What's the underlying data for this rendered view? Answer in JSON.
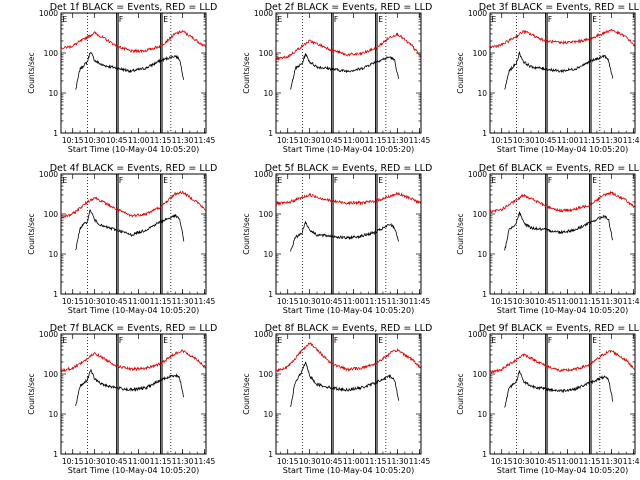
{
  "figure": {
    "ylabel": "Counts/sec",
    "xlabel": "Start Time (10-May-04 10:05:20)",
    "colors": {
      "events": "#000000",
      "lld": "#e00000"
    },
    "y_tick_labels": [
      "1",
      "10",
      "100",
      "1000"
    ],
    "x_tick_labels": [
      "10:15",
      "10:30",
      "10:45",
      "11:00",
      "11:15",
      "11:30",
      "11:45"
    ],
    "marker_labels": [
      "E",
      "F",
      "E"
    ]
  },
  "chart_data": [
    {
      "type": "line",
      "title": "Det 1f BLACK = Events, RED = LLD",
      "ylim": [
        1,
        1000
      ],
      "y_scale": "log",
      "x_range": [
        "10:07",
        "11:46"
      ],
      "series": [
        {
          "name": "Events",
          "color": "#000000",
          "x": [
            "10:17",
            "10:20",
            "10:25",
            "10:27",
            "10:30",
            "10:35",
            "10:45",
            "10:55",
            "11:05",
            "11:15",
            "11:25",
            "11:28",
            "11:31"
          ],
          "y": [
            12,
            40,
            60,
            110,
            65,
            50,
            42,
            35,
            42,
            65,
            85,
            70,
            20
          ]
        },
        {
          "name": "LLD",
          "color": "#e00000",
          "x": [
            "10:07",
            "10:15",
            "10:25",
            "10:30",
            "10:45",
            "10:55",
            "11:05",
            "11:15",
            "11:25",
            "11:30",
            "11:40",
            "11:46"
          ],
          "y": [
            130,
            150,
            250,
            320,
            150,
            110,
            115,
            150,
            300,
            350,
            200,
            140
          ]
        }
      ],
      "vertical_lines": {
        "solid": [
          "10:45",
          "10:46",
          "11:15",
          "11:16"
        ],
        "dotted": [
          "10:25",
          "11:22"
        ]
      }
    },
    {
      "type": "line",
      "title": "Det 2f BLACK = Events, RED = LLD",
      "ylim": [
        1,
        1000
      ],
      "y_scale": "log",
      "x_range": [
        "10:07",
        "11:46"
      ],
      "series": [
        {
          "name": "Events",
          "color": "#000000",
          "x": [
            "10:17",
            "10:20",
            "10:25",
            "10:27",
            "10:30",
            "10:35",
            "10:45",
            "10:55",
            "11:05",
            "11:15",
            "11:25",
            "11:28",
            "11:31"
          ],
          "y": [
            12,
            40,
            55,
            95,
            60,
            45,
            40,
            35,
            40,
            60,
            80,
            65,
            20
          ]
        },
        {
          "name": "LLD",
          "color": "#e00000",
          "x": [
            "10:07",
            "10:15",
            "10:25",
            "10:30",
            "10:45",
            "10:55",
            "11:05",
            "11:15",
            "11:25",
            "11:30",
            "11:40",
            "11:46"
          ],
          "y": [
            70,
            80,
            150,
            200,
            120,
            90,
            95,
            130,
            250,
            300,
            150,
            80
          ]
        }
      ],
      "vertical_lines": {
        "solid": [
          "10:45",
          "10:46",
          "11:15",
          "11:16"
        ],
        "dotted": [
          "10:25",
          "11:22"
        ]
      }
    },
    {
      "type": "line",
      "title": "Det 3f BLACK = Events, RED = LLD",
      "ylim": [
        1,
        1000
      ],
      "y_scale": "log",
      "x_range": [
        "10:07",
        "11:46"
      ],
      "series": [
        {
          "name": "Events",
          "color": "#000000",
          "x": [
            "10:17",
            "10:20",
            "10:25",
            "10:27",
            "10:30",
            "10:35",
            "10:45",
            "10:55",
            "11:05",
            "11:15",
            "11:25",
            "11:28",
            "11:31"
          ],
          "y": [
            12,
            35,
            55,
            100,
            60,
            45,
            40,
            35,
            40,
            60,
            85,
            65,
            20
          ]
        },
        {
          "name": "LLD",
          "color": "#e00000",
          "x": [
            "10:07",
            "10:15",
            "10:25",
            "10:30",
            "10:45",
            "10:55",
            "11:05",
            "11:15",
            "11:25",
            "11:30",
            "11:40",
            "11:46"
          ],
          "y": [
            140,
            160,
            260,
            350,
            200,
            180,
            190,
            220,
            320,
            380,
            250,
            150
          ]
        }
      ],
      "vertical_lines": {
        "solid": [
          "10:45",
          "10:46",
          "11:15",
          "11:16"
        ],
        "dotted": [
          "10:25",
          "11:22"
        ]
      }
    },
    {
      "type": "line",
      "title": "Det 4f BLACK = Events, RED = LLD",
      "ylim": [
        1,
        1000
      ],
      "y_scale": "log",
      "x_range": [
        "10:07",
        "11:46"
      ],
      "series": [
        {
          "name": "Events",
          "color": "#000000",
          "x": [
            "10:17",
            "10:20",
            "10:25",
            "10:27",
            "10:30",
            "10:35",
            "10:45",
            "10:55",
            "11:05",
            "11:15",
            "11:25",
            "11:28",
            "11:31"
          ],
          "y": [
            12,
            45,
            65,
            130,
            70,
            50,
            40,
            30,
            40,
            65,
            90,
            75,
            20
          ]
        },
        {
          "name": "LLD",
          "color": "#e00000",
          "x": [
            "10:07",
            "10:15",
            "10:25",
            "10:30",
            "10:45",
            "10:55",
            "11:05",
            "11:15",
            "11:25",
            "11:30",
            "11:40",
            "11:46"
          ],
          "y": [
            80,
            100,
            200,
            260,
            130,
            90,
            100,
            150,
            320,
            350,
            200,
            120
          ]
        }
      ],
      "vertical_lines": {
        "solid": [
          "10:45",
          "10:46",
          "11:15",
          "11:16"
        ],
        "dotted": [
          "10:25",
          "11:22"
        ]
      }
    },
    {
      "type": "line",
      "title": "Det 5f BLACK = Events, RED = LLD",
      "ylim": [
        1,
        1000
      ],
      "y_scale": "log",
      "x_range": [
        "10:07",
        "11:46"
      ],
      "series": [
        {
          "name": "Events",
          "color": "#000000",
          "x": [
            "10:17",
            "10:20",
            "10:25",
            "10:27",
            "10:30",
            "10:35",
            "10:45",
            "10:55",
            "11:05",
            "11:15",
            "11:25",
            "11:28",
            "11:31"
          ],
          "y": [
            12,
            25,
            35,
            65,
            40,
            30,
            28,
            25,
            28,
            35,
            55,
            45,
            20
          ]
        },
        {
          "name": "LLD",
          "color": "#e00000",
          "x": [
            "10:07",
            "10:15",
            "10:25",
            "10:30",
            "10:45",
            "10:55",
            "11:05",
            "11:15",
            "11:25",
            "11:30",
            "11:40",
            "11:46"
          ],
          "y": [
            180,
            190,
            260,
            300,
            210,
            190,
            190,
            210,
            280,
            320,
            240,
            180
          ]
        }
      ],
      "vertical_lines": {
        "solid": [
          "10:45",
          "10:46",
          "11:15",
          "11:16"
        ],
        "dotted": [
          "10:25",
          "11:22"
        ]
      }
    },
    {
      "type": "line",
      "title": "Det 6f BLACK = Events, RED = LLD",
      "ylim": [
        1,
        1000
      ],
      "y_scale": "log",
      "x_range": [
        "10:07",
        "11:46"
      ],
      "series": [
        {
          "name": "Events",
          "color": "#000000",
          "x": [
            "10:17",
            "10:20",
            "10:25",
            "10:27",
            "10:30",
            "10:35",
            "10:45",
            "10:55",
            "11:05",
            "11:15",
            "11:25",
            "11:28",
            "11:31"
          ],
          "y": [
            12,
            40,
            60,
            110,
            60,
            45,
            40,
            35,
            40,
            60,
            90,
            70,
            20
          ]
        },
        {
          "name": "LLD",
          "color": "#e00000",
          "x": [
            "10:07",
            "10:15",
            "10:25",
            "10:30",
            "10:45",
            "10:55",
            "11:05",
            "11:15",
            "11:25",
            "11:30",
            "11:40",
            "11:46"
          ],
          "y": [
            110,
            130,
            220,
            300,
            160,
            120,
            130,
            170,
            300,
            340,
            220,
            140
          ]
        }
      ],
      "vertical_lines": {
        "solid": [
          "10:45",
          "10:46",
          "11:15",
          "11:16"
        ],
        "dotted": [
          "10:25",
          "11:22"
        ]
      }
    },
    {
      "type": "line",
      "title": "Det 7f BLACK = Events, RED = LLD",
      "ylim": [
        1,
        1000
      ],
      "y_scale": "log",
      "x_range": [
        "10:07",
        "11:46"
      ],
      "series": [
        {
          "name": "Events",
          "color": "#000000",
          "x": [
            "10:17",
            "10:20",
            "10:25",
            "10:27",
            "10:30",
            "10:35",
            "10:45",
            "10:55",
            "11:05",
            "11:15",
            "11:25",
            "11:28",
            "11:31"
          ],
          "y": [
            15,
            50,
            70,
            130,
            75,
            55,
            45,
            40,
            45,
            70,
            95,
            80,
            25
          ]
        },
        {
          "name": "LLD",
          "color": "#e00000",
          "x": [
            "10:07",
            "10:15",
            "10:25",
            "10:30",
            "10:45",
            "10:55",
            "11:05",
            "11:15",
            "11:25",
            "11:30",
            "11:40",
            "11:46"
          ],
          "y": [
            120,
            140,
            240,
            330,
            160,
            130,
            140,
            180,
            330,
            380,
            230,
            140
          ]
        }
      ],
      "vertical_lines": {
        "solid": [
          "10:45",
          "10:46",
          "11:15",
          "11:16"
        ],
        "dotted": [
          "10:25",
          "11:22"
        ]
      }
    },
    {
      "type": "line",
      "title": "Det 8f BLACK = Events, RED = LLD",
      "ylim": [
        1,
        1000
      ],
      "y_scale": "log",
      "x_range": [
        "10:07",
        "11:46"
      ],
      "series": [
        {
          "name": "Events",
          "color": "#000000",
          "x": [
            "10:17",
            "10:20",
            "10:25",
            "10:27",
            "10:30",
            "10:35",
            "10:45",
            "10:55",
            "11:05",
            "11:15",
            "11:25",
            "11:28",
            "11:31"
          ],
          "y": [
            15,
            60,
            120,
            200,
            90,
            55,
            45,
            40,
            45,
            60,
            90,
            70,
            20
          ]
        },
        {
          "name": "LLD",
          "color": "#e00000",
          "x": [
            "10:07",
            "10:15",
            "10:25",
            "10:30",
            "10:45",
            "10:55",
            "11:05",
            "11:15",
            "11:25",
            "11:30",
            "11:40",
            "11:46"
          ],
          "y": [
            120,
            150,
            400,
            600,
            180,
            130,
            140,
            180,
            330,
            400,
            230,
            140
          ]
        }
      ],
      "vertical_lines": {
        "solid": [
          "10:45",
          "10:46",
          "11:15",
          "11:16"
        ],
        "dotted": [
          "10:25",
          "11:22"
        ]
      }
    },
    {
      "type": "line",
      "title": "Det 9f BLACK = Events, RED = LLD",
      "ylim": [
        1,
        1000
      ],
      "y_scale": "log",
      "x_range": [
        "10:07",
        "11:46"
      ],
      "series": [
        {
          "name": "Events",
          "color": "#000000",
          "x": [
            "10:17",
            "10:20",
            "10:25",
            "10:27",
            "10:30",
            "10:35",
            "10:45",
            "10:55",
            "11:05",
            "11:15",
            "11:25",
            "11:28",
            "11:31"
          ],
          "y": [
            15,
            45,
            65,
            120,
            65,
            50,
            42,
            38,
            42,
            60,
            85,
            70,
            20
          ]
        },
        {
          "name": "LLD",
          "color": "#e00000",
          "x": [
            "10:07",
            "10:15",
            "10:25",
            "10:30",
            "10:45",
            "10:55",
            "11:05",
            "11:15",
            "11:25",
            "11:30",
            "11:40",
            "11:46"
          ],
          "y": [
            110,
            130,
            230,
            310,
            160,
            120,
            130,
            170,
            320,
            380,
            220,
            130
          ]
        }
      ],
      "vertical_lines": {
        "solid": [
          "10:45",
          "10:46",
          "11:15",
          "11:16"
        ],
        "dotted": [
          "10:25",
          "11:22"
        ]
      }
    }
  ]
}
